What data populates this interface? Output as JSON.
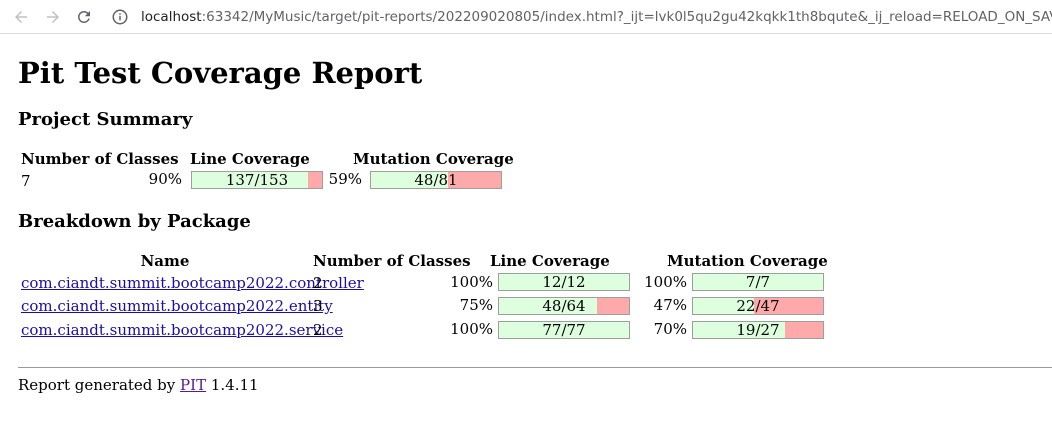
{
  "browser": {
    "url_host": "localhost",
    "url_rest": ":63342/MyMusic/target/pit-reports/202209020805/index.html?_ijt=lvk0l5qu2gu42kqkk1th8bqute&_ij_reload=RELOAD_ON_SAVE"
  },
  "report": {
    "title": "Pit Test Coverage Report",
    "project_summary_heading": "Project Summary",
    "summary": {
      "headers": {
        "classes": "Number of Classes",
        "line": "Line Coverage",
        "mutation": "Mutation Coverage"
      },
      "classes": "7",
      "line_pct": "90%",
      "line_ratio": "137/153",
      "line_fraction": 0.895,
      "mutation_pct": "59%",
      "mutation_ratio": "48/81",
      "mutation_fraction": 0.593
    },
    "breakdown_heading": "Breakdown by Package",
    "breakdown": {
      "headers": {
        "name": "Name",
        "classes": "Number of Classes",
        "line": "Line Coverage",
        "mutation": "Mutation Coverage"
      },
      "rows": [
        {
          "name": "com.ciandt.summit.bootcamp2022.controller",
          "classes": "2",
          "line_pct": "100%",
          "line_ratio": "12/12",
          "line_fraction": 1.0,
          "mutation_pct": "100%",
          "mutation_ratio": "7/7",
          "mutation_fraction": 1.0
        },
        {
          "name": "com.ciandt.summit.bootcamp2022.entity",
          "classes": "3",
          "line_pct": "75%",
          "line_ratio": "48/64",
          "line_fraction": 0.75,
          "mutation_pct": "47%",
          "mutation_ratio": "22/47",
          "mutation_fraction": 0.468
        },
        {
          "name": "com.ciandt.summit.bootcamp2022.service",
          "classes": "2",
          "line_pct": "100%",
          "line_ratio": "77/77",
          "line_fraction": 1.0,
          "mutation_pct": "70%",
          "mutation_ratio": "19/27",
          "mutation_fraction": 0.704
        }
      ]
    },
    "footer": {
      "prefix": "Report generated by",
      "link": "PIT",
      "version": "1.4.11"
    }
  },
  "colors": {
    "covered": "#ddffdd",
    "uncovered": "#ffaaaa",
    "link": "#1a0dab",
    "visited_link": "#551a8b"
  }
}
